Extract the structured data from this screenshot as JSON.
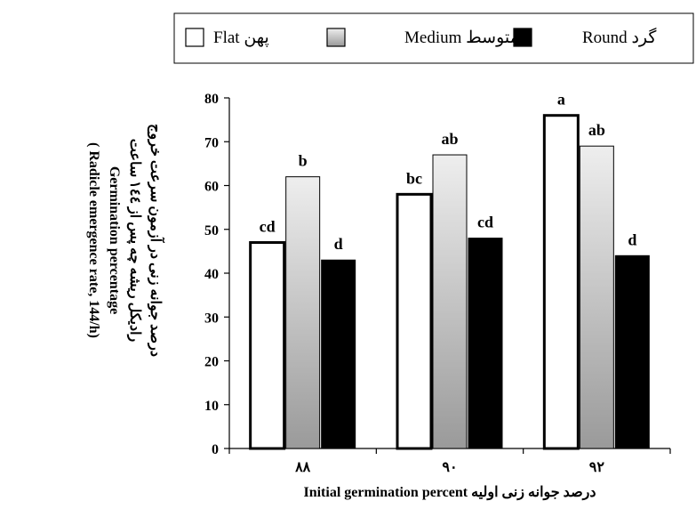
{
  "legend": {
    "items": [
      {
        "label": "Flat پهن",
        "series": "flat"
      },
      {
        "label": "Medium  متوسط",
        "series": "medium"
      },
      {
        "label": "Round  گرد",
        "series": "round"
      }
    ]
  },
  "axes": {
    "y_title_lines": [
      "درصد جوانه زنی در آزمون سرعت خروج",
      "رادیکل ریشه چه پس از ۱٤٤ ساعت",
      "Germination percentage",
      "( Radicle emergence rate, 144/h)"
    ],
    "x_title": "درصد جوانه زنی اولیه Initial germination percent"
  },
  "colors": {
    "flat": "#ffffff",
    "medium_top": "#eeeeee",
    "medium_bottom": "#9a9a9a",
    "round": "#000000",
    "axis": "#000000"
  },
  "chart_data": {
    "type": "bar",
    "categories": [
      "۸۸",
      "۹۰",
      "۹۲"
    ],
    "ylim": [
      0,
      80
    ],
    "yticks": [
      0,
      10,
      20,
      30,
      40,
      50,
      60,
      70,
      80
    ],
    "series": [
      {
        "key": "flat",
        "values": [
          47,
          58,
          76
        ],
        "labels": [
          "cd",
          "bc",
          "a"
        ]
      },
      {
        "key": "medium",
        "values": [
          62,
          67,
          69
        ],
        "labels": [
          "b",
          "ab",
          "ab"
        ]
      },
      {
        "key": "round",
        "values": [
          43,
          48,
          44
        ],
        "labels": [
          "d",
          "cd",
          "d"
        ]
      }
    ],
    "legend_position": "top"
  }
}
